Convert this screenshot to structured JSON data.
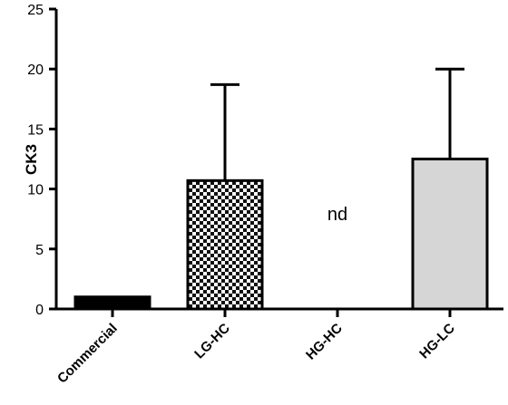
{
  "chart_data": {
    "type": "bar",
    "title": "",
    "xlabel": "",
    "ylabel": "CK3",
    "ylim": [
      0,
      25
    ],
    "yticks": [
      0,
      5,
      10,
      15,
      20,
      25
    ],
    "grid": false,
    "categories": [
      "Commercial",
      "LG-HC",
      "HG-HC",
      "HG-LC"
    ],
    "values": [
      1.0,
      10.7,
      null,
      12.5
    ],
    "error_upper": [
      0,
      8.0,
      null,
      7.5
    ],
    "fills": [
      "solid-black",
      "checkerboard",
      "none",
      "light-gray"
    ],
    "annotations": [
      {
        "category": "HG-HC",
        "text": "nd"
      }
    ]
  },
  "colors": {
    "axis": "#000000",
    "solid_bar": "#000000",
    "light_bar": "#d6d6d6",
    "checker_dark": "#111111",
    "checker_light": "#ffffff"
  }
}
